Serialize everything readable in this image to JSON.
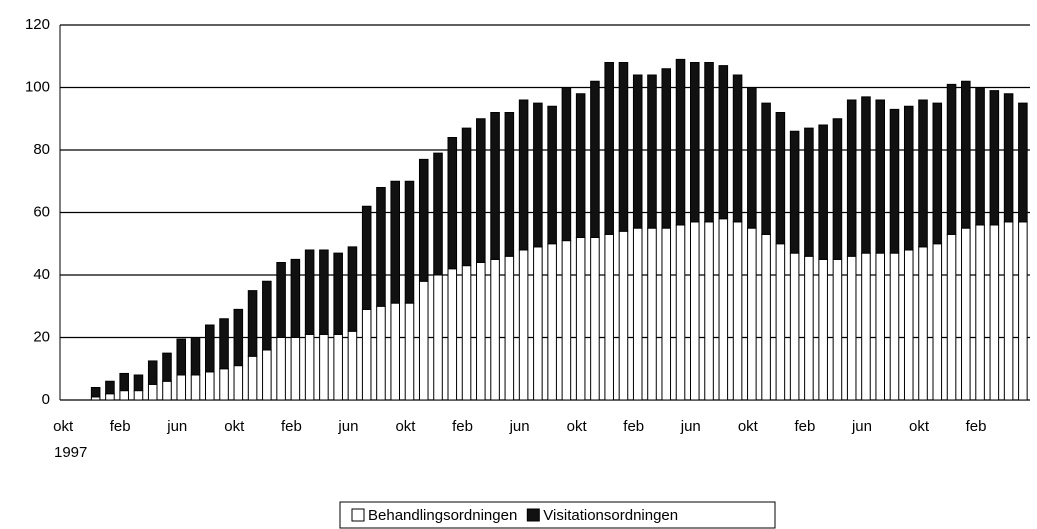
{
  "chart_data": {
    "type": "stacked_bar",
    "categories": [
      "okt",
      null,
      null,
      null,
      "feb",
      null,
      null,
      null,
      "jun",
      null,
      null,
      null,
      "okt",
      null,
      null,
      null,
      "feb",
      null,
      null,
      null,
      "jun",
      null,
      null,
      null,
      "okt",
      null,
      null,
      null,
      "feb",
      null,
      null,
      null,
      "jun",
      null,
      null,
      null,
      "okt",
      null,
      null,
      null,
      "feb",
      null,
      null,
      null,
      "jun",
      null,
      null,
      null,
      "okt",
      null,
      null,
      null,
      "feb",
      null,
      null,
      null,
      "jun",
      null,
      null,
      null,
      "okt",
      null,
      null,
      null,
      "feb",
      null,
      null,
      null
    ],
    "x_sublabel": "1997",
    "series": [
      {
        "name": "Behandlingsordningen",
        "color": "#ffffff",
        "values": [
          0,
          0,
          1,
          2,
          3,
          3,
          5,
          6,
          8,
          8,
          9,
          10,
          11,
          14,
          16,
          20,
          20,
          21,
          21,
          21,
          22,
          29,
          30,
          31,
          31,
          38,
          40,
          42,
          43,
          44,
          45,
          46,
          48,
          49,
          50,
          51,
          52,
          52,
          53,
          54,
          55,
          55,
          55,
          56,
          57,
          57,
          58,
          57,
          55,
          53,
          50,
          47,
          46,
          45,
          45,
          46,
          47,
          47,
          47,
          48,
          49,
          50,
          53,
          55,
          56,
          56,
          57,
          57
        ]
      },
      {
        "name": "Visitationsordningen",
        "color": "#111111",
        "values": [
          0,
          0,
          3,
          4,
          5.5,
          5,
          7.5,
          9,
          11.5,
          12,
          15,
          16,
          18,
          21,
          22,
          24,
          25,
          27,
          27,
          26,
          27,
          33,
          38,
          39,
          39,
          39,
          39,
          42,
          44,
          46,
          47,
          46,
          48,
          46,
          44,
          49,
          46,
          50,
          55,
          54,
          49,
          49,
          51,
          53,
          51,
          51,
          49,
          47,
          45,
          42,
          42,
          39,
          41,
          43,
          45,
          50,
          50,
          49,
          46,
          46,
          47,
          45,
          48,
          47,
          44,
          43,
          41,
          38
        ]
      }
    ],
    "ylim": [
      0,
      120
    ],
    "yticks": [
      0,
      20,
      40,
      60,
      80,
      100,
      120
    ],
    "grid": true,
    "legend": "bottom"
  }
}
